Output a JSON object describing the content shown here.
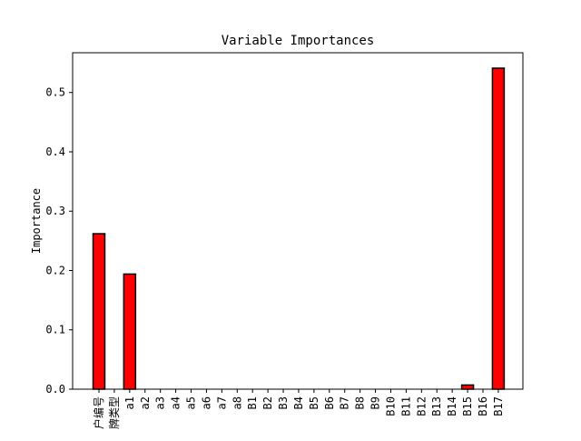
{
  "chart_data": {
    "type": "bar",
    "title": "Variable Importances",
    "xlabel": "",
    "ylabel": "Importance",
    "categories": [
      "户编号",
      "牌类型",
      "a1",
      "a2",
      "a3",
      "a4",
      "a5",
      "a6",
      "a7",
      "a8",
      "B1",
      "B2",
      "B3",
      "B4",
      "B5",
      "B6",
      "B7",
      "B8",
      "B9",
      "B10",
      "B11",
      "B12",
      "B13",
      "B14",
      "B15",
      "B16",
      "B17"
    ],
    "values": [
      0.262,
      0.0,
      0.194,
      0.0,
      0.0,
      0.0,
      0.0,
      0.0,
      0.0,
      0.0,
      0.0,
      0.0,
      0.0,
      0.0,
      0.0,
      0.0,
      0.0,
      0.0,
      0.0,
      0.0,
      0.0,
      0.0,
      0.0,
      0.0,
      0.007,
      0.0,
      0.541
    ],
    "ylim": [
      0,
      0.567
    ],
    "yticks": [
      "0.0",
      "0.1",
      "0.2",
      "0.3",
      "0.4",
      "0.5"
    ],
    "grid": false,
    "colors": {
      "bar_fill": "#ff0000",
      "bar_edge": "#000000"
    }
  }
}
